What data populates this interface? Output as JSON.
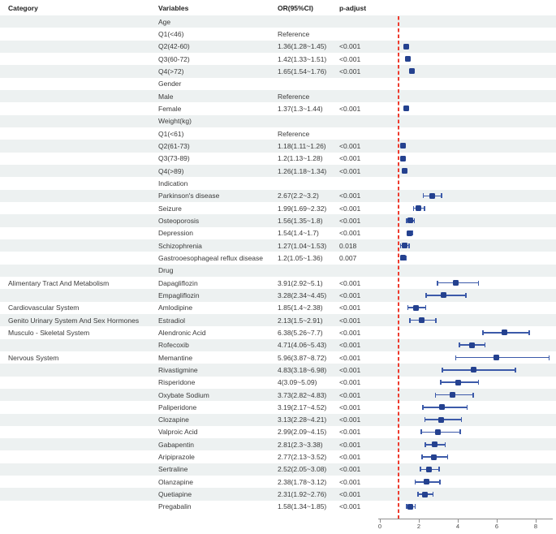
{
  "chart_data": {
    "type": "forest",
    "title": "",
    "columns": [
      "Category",
      "Variables",
      "OR(95%CI)",
      "p-adjust"
    ],
    "axis": {
      "xlabel": "",
      "ticks": [
        0,
        2,
        4,
        6,
        8
      ],
      "range": [
        0,
        8.8
      ],
      "reference_line": 1,
      "grid": false
    },
    "rows": [
      {
        "category": "",
        "variable": "Age",
        "or_ci": "",
        "p": ""
      },
      {
        "category": "",
        "variable": "Q1(<46)",
        "or_ci": "Reference",
        "p": ""
      },
      {
        "category": "",
        "variable": "Q2(42-60)",
        "or_ci": "1.36(1.28~1.45)",
        "p": "<0.001",
        "or": 1.36,
        "lo": 1.28,
        "hi": 1.45
      },
      {
        "category": "",
        "variable": "Q3(60-72)",
        "or_ci": "1.42(1.33~1.51)",
        "p": "<0.001",
        "or": 1.42,
        "lo": 1.33,
        "hi": 1.51
      },
      {
        "category": "",
        "variable": "Q4(>72)",
        "or_ci": "1.65(1.54~1.76)",
        "p": "<0.001",
        "or": 1.65,
        "lo": 1.54,
        "hi": 1.76
      },
      {
        "category": "",
        "variable": "Gender",
        "or_ci": "",
        "p": ""
      },
      {
        "category": "",
        "variable": "Male",
        "or_ci": "Reference",
        "p": ""
      },
      {
        "category": "",
        "variable": "Female",
        "or_ci": "1.37(1.3~1.44)",
        "p": "<0.001",
        "or": 1.37,
        "lo": 1.3,
        "hi": 1.44
      },
      {
        "category": "",
        "variable": "Weight(kg)",
        "or_ci": "",
        "p": ""
      },
      {
        "category": "",
        "variable": "Q1(<61)",
        "or_ci": "Reference",
        "p": ""
      },
      {
        "category": "",
        "variable": "Q2(61-73)",
        "or_ci": "1.18(1.11~1.26)",
        "p": "<0.001",
        "or": 1.18,
        "lo": 1.11,
        "hi": 1.26
      },
      {
        "category": "",
        "variable": "Q3(73-89)",
        "or_ci": "1.2(1.13~1.28)",
        "p": "<0.001",
        "or": 1.2,
        "lo": 1.13,
        "hi": 1.28
      },
      {
        "category": "",
        "variable": "Q4(>89)",
        "or_ci": "1.26(1.18~1.34)",
        "p": "<0.001",
        "or": 1.26,
        "lo": 1.18,
        "hi": 1.34
      },
      {
        "category": "",
        "variable": "Indication",
        "or_ci": "",
        "p": ""
      },
      {
        "category": "",
        "variable": "Parkinson's disease",
        "or_ci": "2.67(2.2~3.2)",
        "p": "<0.001",
        "or": 2.67,
        "lo": 2.2,
        "hi": 3.2
      },
      {
        "category": "",
        "variable": "Seizure",
        "or_ci": "1.99(1.69~2.32)",
        "p": "<0.001",
        "or": 1.99,
        "lo": 1.69,
        "hi": 2.32
      },
      {
        "category": "",
        "variable": "Osteoporosis",
        "or_ci": "1.56(1.35~1.8)",
        "p": "<0.001",
        "or": 1.56,
        "lo": 1.35,
        "hi": 1.8
      },
      {
        "category": "",
        "variable": "Depression",
        "or_ci": "1.54(1.4~1.7)",
        "p": "<0.001",
        "or": 1.54,
        "lo": 1.4,
        "hi": 1.7
      },
      {
        "category": "",
        "variable": "Schizophrenia",
        "or_ci": "1.27(1.04~1.53)",
        "p": "0.018",
        "or": 1.27,
        "lo": 1.04,
        "hi": 1.53
      },
      {
        "category": "",
        "variable": "Gastrooesophageal reflux disease",
        "or_ci": "1.2(1.05~1.36)",
        "p": "0.007",
        "or": 1.2,
        "lo": 1.05,
        "hi": 1.36
      },
      {
        "category": "",
        "variable": "Drug",
        "or_ci": "",
        "p": ""
      },
      {
        "category": "Alimentary Tract And Metabolism",
        "variable": "Dapagliflozin",
        "or_ci": "3.91(2.92~5.1)",
        "p": "<0.001",
        "or": 3.91,
        "lo": 2.92,
        "hi": 5.1
      },
      {
        "category": "",
        "variable": "Empagliflozin",
        "or_ci": "3.28(2.34~4.45)",
        "p": "<0.001",
        "or": 3.28,
        "lo": 2.34,
        "hi": 4.45
      },
      {
        "category": "Cardiovascular System",
        "variable": "Amlodipine",
        "or_ci": "1.85(1.4~2.38)",
        "p": "<0.001",
        "or": 1.85,
        "lo": 1.4,
        "hi": 2.38
      },
      {
        "category": "Genito Urinary System And Sex Hormones",
        "variable": "Estradiol",
        "or_ci": "2.13(1.5~2.91)",
        "p": "<0.001",
        "or": 2.13,
        "lo": 1.5,
        "hi": 2.91
      },
      {
        "category": "Musculo - Skeletal System",
        "variable": "Alendronic Acid",
        "or_ci": "6.38(5.26~7.7)",
        "p": "<0.001",
        "or": 6.38,
        "lo": 5.26,
        "hi": 7.7
      },
      {
        "category": "",
        "variable": "Rofecoxib",
        "or_ci": "4.71(4.06~5.43)",
        "p": "<0.001",
        "or": 4.71,
        "lo": 4.06,
        "hi": 5.43
      },
      {
        "category": "Nervous System",
        "variable": "Memantine",
        "or_ci": "5.96(3.87~8.72)",
        "p": "<0.001",
        "or": 5.96,
        "lo": 3.87,
        "hi": 8.72
      },
      {
        "category": "",
        "variable": "Rivastigmine",
        "or_ci": "4.83(3.18~6.98)",
        "p": "<0.001",
        "or": 4.83,
        "lo": 3.18,
        "hi": 6.98
      },
      {
        "category": "",
        "variable": "Risperidone",
        "or_ci": "4(3.09~5.09)",
        "p": "<0.001",
        "or": 4,
        "lo": 3.09,
        "hi": 5.09
      },
      {
        "category": "",
        "variable": "Oxybate Sodium",
        "or_ci": "3.73(2.82~4.83)",
        "p": "<0.001",
        "or": 3.73,
        "lo": 2.82,
        "hi": 4.83
      },
      {
        "category": "",
        "variable": "Paliperidone",
        "or_ci": "3.19(2.17~4.52)",
        "p": "<0.001",
        "or": 3.19,
        "lo": 2.17,
        "hi": 4.52
      },
      {
        "category": "",
        "variable": "Clozapine",
        "or_ci": "3.13(2.28~4.21)",
        "p": "<0.001",
        "or": 3.13,
        "lo": 2.28,
        "hi": 4.21
      },
      {
        "category": "",
        "variable": "Valproic Acid",
        "or_ci": "2.99(2.09~4.15)",
        "p": "<0.001",
        "or": 2.99,
        "lo": 2.09,
        "hi": 4.15
      },
      {
        "category": "",
        "variable": "Gabapentin",
        "or_ci": "2.81(2.3~3.38)",
        "p": "<0.001",
        "or": 2.81,
        "lo": 2.3,
        "hi": 3.38
      },
      {
        "category": "",
        "variable": "Aripiprazole",
        "or_ci": "2.77(2.13~3.52)",
        "p": "<0.001",
        "or": 2.77,
        "lo": 2.13,
        "hi": 3.52
      },
      {
        "category": "",
        "variable": "Sertraline",
        "or_ci": "2.52(2.05~3.08)",
        "p": "<0.001",
        "or": 2.52,
        "lo": 2.05,
        "hi": 3.08
      },
      {
        "category": "",
        "variable": "Olanzapine",
        "or_ci": "2.38(1.78~3.12)",
        "p": "<0.001",
        "or": 2.38,
        "lo": 1.78,
        "hi": 3.12
      },
      {
        "category": "",
        "variable": "Quetiapine",
        "or_ci": "2.31(1.92~2.76)",
        "p": "<0.001",
        "or": 2.31,
        "lo": 1.92,
        "hi": 2.76
      },
      {
        "category": "",
        "variable": "Pregabalin",
        "or_ci": "1.58(1.34~1.85)",
        "p": "<0.001",
        "or": 1.58,
        "lo": 1.34,
        "hi": 1.85
      }
    ]
  },
  "colors": {
    "row_stripe": "#edf1f1",
    "marker": "#24418f",
    "whisker": "#3c5aa9",
    "reference_line": "#ee3b2e",
    "axis": "#8f8f8f",
    "text": "#3a3a3a"
  }
}
